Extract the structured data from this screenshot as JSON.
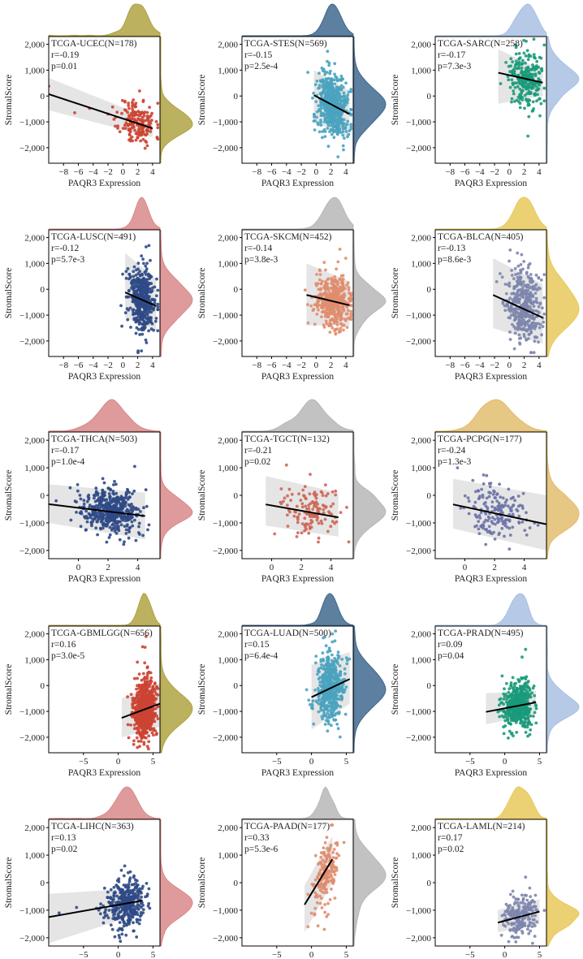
{
  "figure": {
    "y_label": "StromalScore",
    "x_label": "PAQR3 Expression"
  },
  "chart_data": [
    {
      "type": "scatter",
      "title": "TCGA-UCEC(N=178)",
      "r_text": "r=-0.19",
      "p_text": "p=0.01",
      "color": "#cc4433",
      "density_color": "#b0a343",
      "xlim": [
        -10,
        5
      ],
      "xticks": [
        -8,
        -6,
        -4,
        -2,
        0,
        2,
        4
      ],
      "ylim": [
        -2600,
        2300
      ],
      "yticks": [
        -2000,
        -1000,
        0,
        1000,
        2000
      ],
      "fit": {
        "x": [
          -10,
          4
        ],
        "y": [
          70,
          -1250
        ]
      },
      "band": {
        "x": [
          -10,
          4
        ],
        "lower_start": -550,
        "upper_start": 700,
        "lower_end": -1600,
        "upper_end": -900
      },
      "points": {
        "n": 178,
        "x_mean": 2.0,
        "x_sd": 1.2,
        "y_mean": -950,
        "y_sd": 450,
        "seed": 11,
        "outliers": [
          [
            -10,
            380
          ],
          [
            -6.5,
            -650
          ],
          [
            -4.5,
            -480
          ],
          [
            -2,
            -700
          ],
          [
            -1.2,
            -900
          ]
        ]
      }
    },
    {
      "type": "scatter",
      "title": "TCGA-STES(N=569)",
      "r_text": "r=-0.15",
      "p_text": "p=2.5e-4",
      "color": "#4aa3bf",
      "density_color": "#41698f",
      "xlim": [
        -10,
        5
      ],
      "xticks": [
        -8,
        -6,
        -4,
        -2,
        0,
        2,
        4
      ],
      "ylim": [
        -2600,
        2300
      ],
      "yticks": [
        -2000,
        -1000,
        0,
        1000,
        2000
      ],
      "fit": {
        "x": [
          -0.3,
          4.5
        ],
        "y": [
          30,
          -700
        ]
      },
      "band": {
        "x": [
          -0.3,
          4.5
        ],
        "lower_start": -1000,
        "upper_start": 1000,
        "lower_end": -1600,
        "upper_end": 200
      },
      "points": {
        "n": 569,
        "x_mean": 2.3,
        "x_sd": 1.0,
        "y_mean": -400,
        "y_sd": 620,
        "seed": 12,
        "outliers": []
      }
    },
    {
      "type": "scatter",
      "title": "TCGA-SARC(N=258)",
      "r_text": "r=-0.17",
      "p_text": "p=7.3e-3",
      "color": "#1a9a7a",
      "density_color": "#a9c1e4",
      "xlim": [
        -10,
        5
      ],
      "xticks": [
        -8,
        -6,
        -4,
        -2,
        0,
        2,
        4
      ],
      "ylim": [
        -2600,
        2300
      ],
      "yticks": [
        -2000,
        -1000,
        0,
        1000,
        2000
      ],
      "fit": {
        "x": [
          -1.5,
          4.5
        ],
        "y": [
          900,
          520
        ]
      },
      "band": {
        "x": [
          -1.5,
          4.5
        ],
        "lower_start": -300,
        "upper_start": 1800,
        "lower_end": 0,
        "upper_end": 1000
      },
      "points": {
        "n": 258,
        "x_mean": 2.3,
        "x_sd": 1.2,
        "y_mean": 550,
        "y_sd": 550,
        "seed": 13,
        "outliers": [
          [
            3.3,
            2200
          ],
          [
            2.5,
            -1550
          ]
        ]
      }
    },
    {
      "type": "scatter",
      "title": "TCGA-LUSC(N=491)",
      "r_text": "r=-0.12",
      "p_text": "p=5.7e-3",
      "color": "#2f4a86",
      "density_color": "#d98989",
      "xlim": [
        -10,
        5
      ],
      "xticks": [
        -8,
        -6,
        -4,
        -2,
        0,
        2,
        4
      ],
      "ylim": [
        -2600,
        2300
      ],
      "yticks": [
        -2000,
        -1000,
        0,
        1000,
        2000
      ],
      "fit": {
        "x": [
          0.3,
          4.5
        ],
        "y": [
          -120,
          -650
        ]
      },
      "band": {
        "x": [
          0.3,
          4.5
        ],
        "lower_start": -1100,
        "upper_start": 1400,
        "lower_end": -1600,
        "upper_end": 400
      },
      "points": {
        "n": 491,
        "x_mean": 2.6,
        "x_sd": 0.9,
        "y_mean": -350,
        "y_sd": 620,
        "seed": 14,
        "outliers": []
      }
    },
    {
      "type": "scatter",
      "title": "TCGA-SKCM(N=452)",
      "r_text": "r=-0.14",
      "p_text": "p=3.8e-3",
      "color": "#e08d6e",
      "density_color": "#b7b7b7",
      "xlim": [
        -10,
        5
      ],
      "xticks": [
        -8,
        -6,
        -4,
        -2,
        0,
        2,
        4
      ],
      "ylim": [
        -2600,
        2300
      ],
      "yticks": [
        -2000,
        -1000,
        0,
        1000,
        2000
      ],
      "fit": {
        "x": [
          -1.3,
          4.5
        ],
        "y": [
          -220,
          -620
        ]
      },
      "band": {
        "x": [
          -1.3,
          4.5
        ],
        "lower_start": -1400,
        "upper_start": 1000,
        "lower_end": -1400,
        "upper_end": 300
      },
      "points": {
        "n": 452,
        "x_mean": 2.3,
        "x_sd": 1.2,
        "y_mean": -380,
        "y_sd": 480,
        "seed": 15,
        "outliers": [
          [
            3.2,
            1550
          ],
          [
            4,
            1200
          ]
        ]
      }
    },
    {
      "type": "scatter",
      "title": "TCGA-BLCA(N=405)",
      "r_text": "r=-0.13",
      "p_text": "p=8.6e-3",
      "color": "#7d86ad",
      "density_color": "#e8c95a",
      "xlim": [
        -10,
        5
      ],
      "xticks": [
        -8,
        -6,
        -4,
        -2,
        0,
        2,
        4
      ],
      "ylim": [
        -2600,
        2300
      ],
      "yticks": [
        -2000,
        -1000,
        0,
        1000,
        2000
      ],
      "fit": {
        "x": [
          -2.2,
          4.5
        ],
        "y": [
          -220,
          -1100
        ]
      },
      "band": {
        "x": [
          -2.2,
          4.5
        ],
        "lower_start": -1500,
        "upper_start": 1200,
        "lower_end": -2100,
        "upper_end": 200
      },
      "points": {
        "n": 405,
        "x_mean": 2.0,
        "x_sd": 1.2,
        "y_mean": -500,
        "y_sd": 700,
        "seed": 16,
        "outliers": []
      }
    },
    {
      "type": "scatter",
      "title": "TCGA-THCA(N=503)",
      "r_text": "r=-0.17",
      "p_text": "p=1.0e-4",
      "color": "#2f4a86",
      "density_color": "#d98989",
      "xlim": [
        -2,
        5.5
      ],
      "xticks": [
        0,
        2,
        4
      ],
      "ylim": [
        -2300,
        2300
      ],
      "yticks": [
        -2000,
        -1000,
        0,
        1000,
        2000
      ],
      "fit": {
        "x": [
          -2,
          4.5
        ],
        "y": [
          -320,
          -750
        ]
      },
      "band": {
        "x": [
          -2,
          4.5
        ],
        "lower_start": -1000,
        "upper_start": 400,
        "lower_end": -1600,
        "upper_end": 100
      },
      "points": {
        "n": 503,
        "x_mean": 2.2,
        "x_sd": 0.9,
        "y_mean": -480,
        "y_sd": 400,
        "seed": 17,
        "outliers": [
          [
            -1.5,
            -200
          ],
          [
            -0.5,
            -900
          ],
          [
            3.8,
            1050
          ]
        ]
      }
    },
    {
      "type": "scatter",
      "title": "TCGA-TGCT(N=132)",
      "r_text": "r=-0.21",
      "p_text": "p=0.02",
      "color": "#cd6655",
      "density_color": "#b7b7b7",
      "xlim": [
        -2,
        5.5
      ],
      "xticks": [
        0,
        2,
        4
      ],
      "ylim": [
        -2300,
        2300
      ],
      "yticks": [
        -2000,
        -1000,
        0,
        1000,
        2000
      ],
      "fit": {
        "x": [
          -0.4,
          4.5
        ],
        "y": [
          -330,
          -800
        ]
      },
      "band": {
        "x": [
          -0.4,
          4.5
        ],
        "lower_start": -1100,
        "upper_start": 700,
        "lower_end": -1500,
        "upper_end": 100
      },
      "points": {
        "n": 132,
        "x_mean": 2.7,
        "x_sd": 0.9,
        "y_mean": -500,
        "y_sd": 480,
        "seed": 18,
        "outliers": [
          [
            1,
            1100
          ],
          [
            0.2,
            -1400
          ]
        ]
      }
    },
    {
      "type": "scatter",
      "title": "TCGA-PCPG(N=177)",
      "r_text": "r=-0.24",
      "p_text": "p=1.3e-3",
      "color": "#6b73a8",
      "density_color": "#e2bd6e",
      "xlim": [
        -2,
        5.5
      ],
      "xticks": [
        0,
        2,
        4
      ],
      "ylim": [
        -2300,
        2300
      ],
      "yticks": [
        -2000,
        -1000,
        0,
        1000,
        2000
      ],
      "fit": {
        "x": [
          -0.8,
          5.5
        ],
        "y": [
          -330,
          -1050
        ]
      },
      "band": {
        "x": [
          -0.8,
          5.5
        ],
        "lower_start": -1200,
        "upper_start": 600,
        "lower_end": -2000,
        "upper_end": 0
      },
      "points": {
        "n": 177,
        "x_mean": 2.2,
        "x_sd": 1.0,
        "y_mean": -600,
        "y_sd": 500,
        "seed": 19,
        "outliers": [
          [
            -0.5,
            1000
          ],
          [
            3,
            -1950
          ]
        ]
      }
    },
    {
      "type": "scatter",
      "title": "TCGA-GBMLGG(N=656)",
      "r_text": "r=0.16",
      "p_text": "p=3.0e-5",
      "color": "#cc4433",
      "density_color": "#b0a343",
      "xlim": [
        -10,
        6
      ],
      "xticks": [
        -5,
        0,
        5
      ],
      "ylim": [
        -2600,
        2300
      ],
      "yticks": [
        -2000,
        -1000,
        0,
        1000,
        2000
      ],
      "fit": {
        "x": [
          0.5,
          6
        ],
        "y": [
          -1250,
          -700
        ]
      },
      "band": {
        "x": [
          0.5,
          6
        ],
        "lower_start": -2000,
        "upper_start": -500,
        "lower_end": -1600,
        "upper_end": 100
      },
      "points": {
        "n": 656,
        "x_mean": 3.8,
        "x_sd": 0.8,
        "y_mean": -850,
        "y_sd": 600,
        "seed": 20,
        "outliers": [
          [
            4,
            1900
          ],
          [
            3.5,
            1500
          ]
        ]
      }
    },
    {
      "type": "scatter",
      "title": "TCGA-LUAD(N=500)",
      "r_text": "r=0.15",
      "p_text": "p=6.4e-4",
      "color": "#4aa3bf",
      "density_color": "#41698f",
      "xlim": [
        -10,
        6
      ],
      "xticks": [
        -5,
        0,
        5
      ],
      "ylim": [
        -2600,
        2300
      ],
      "yticks": [
        -2000,
        -1000,
        0,
        1000,
        2000
      ],
      "fit": {
        "x": [
          0,
          5.5
        ],
        "y": [
          -450,
          250
        ]
      },
      "band": {
        "x": [
          0,
          5.5
        ],
        "lower_start": -1700,
        "upper_start": 800,
        "lower_end": -700,
        "upper_end": 1300
      },
      "points": {
        "n": 500,
        "x_mean": 2.7,
        "x_sd": 1.0,
        "y_mean": -80,
        "y_sd": 650,
        "seed": 21,
        "outliers": [
          [
            3,
            2000
          ]
        ]
      }
    },
    {
      "type": "scatter",
      "title": "TCGA-PRAD(N=495)",
      "r_text": "r=0.09",
      "p_text": "p=0.04",
      "color": "#1a9a7a",
      "density_color": "#a9c1e4",
      "xlim": [
        -10,
        6
      ],
      "xticks": [
        -5,
        0,
        5
      ],
      "ylim": [
        -2600,
        2300
      ],
      "yticks": [
        -2000,
        -1000,
        0,
        1000,
        2000
      ],
      "fit": {
        "x": [
          -2.7,
          4.5
        ],
        "y": [
          -1020,
          -650
        ]
      },
      "band": {
        "x": [
          -2.7,
          4.5
        ],
        "lower_start": -1500,
        "upper_start": -300,
        "lower_end": -1100,
        "upper_end": -200
      },
      "points": {
        "n": 495,
        "x_mean": 2.0,
        "x_sd": 1.0,
        "y_mean": -780,
        "y_sd": 430,
        "seed": 22,
        "outliers": [
          [
            3,
            1400
          ],
          [
            2.5,
            1100
          ]
        ]
      }
    },
    {
      "type": "scatter",
      "title": "TCGA-LIHC(N=363)",
      "r_text": "r=0.13",
      "p_text": "p=0.02",
      "color": "#2f4a86",
      "density_color": "#d98989",
      "xlim": [
        -10,
        6
      ],
      "xticks": [
        -5,
        0,
        5
      ],
      "ylim": [
        -2300,
        2300
      ],
      "yticks": [
        -2000,
        -1000,
        0,
        1000,
        2000
      ],
      "fit": {
        "x": [
          -10,
          3.5
        ],
        "y": [
          -1250,
          -650
        ]
      },
      "band": {
        "x": [
          -10,
          3.5
        ],
        "lower_start": -2200,
        "upper_start": -400,
        "lower_end": -1100,
        "upper_end": -200
      },
      "points": {
        "n": 363,
        "x_mean": 1.0,
        "x_sd": 1.4,
        "y_mean": -800,
        "y_sd": 450,
        "seed": 23,
        "outliers": [
          [
            -8.5,
            -1100
          ],
          [
            -6,
            -900
          ]
        ]
      }
    },
    {
      "type": "scatter",
      "title": "TCGA-PAAD(N=177)",
      "r_text": "r=0.33",
      "p_text": "p=5.3e-6",
      "color": "#e08d6e",
      "density_color": "#b7b7b7",
      "xlim": [
        -10,
        6
      ],
      "xticks": [
        -5,
        0,
        5
      ],
      "ylim": [
        -2300,
        2300
      ],
      "yticks": [
        -2000,
        -1000,
        0,
        1000,
        2000
      ],
      "fit": {
        "x": [
          -1,
          3
        ],
        "y": [
          -800,
          850
        ]
      },
      "band": {
        "x": [
          -1,
          3
        ],
        "lower_start": -1800,
        "upper_start": -100,
        "lower_end": 0,
        "upper_end": 1700
      },
      "points": {
        "n": 177,
        "x_mean": 1.9,
        "x_sd": 0.9,
        "y_mean": 0,
        "y_sd": 650,
        "seed": 24,
        "outliers": [
          [
            -0.5,
            -1600
          ]
        ]
      }
    },
    {
      "type": "scatter",
      "title": "TCGA-LAML(N=214)",
      "r_text": "r=0.17",
      "p_text": "p=0.02",
      "color": "#7d86ad",
      "density_color": "#e8c95a",
      "xlim": [
        -10,
        6
      ],
      "xticks": [
        -5,
        0,
        5
      ],
      "ylim": [
        -2300,
        2300
      ],
      "yticks": [
        -2000,
        -1000,
        0,
        1000,
        2000
      ],
      "fit": {
        "x": [
          -1,
          5
        ],
        "y": [
          -1450,
          -1050
        ]
      },
      "band": {
        "x": [
          -1,
          5
        ],
        "lower_start": -1800,
        "upper_start": -1000,
        "lower_end": -1500,
        "upper_end": -600
      },
      "points": {
        "n": 214,
        "x_mean": 2.2,
        "x_sd": 1.2,
        "y_mean": -1200,
        "y_sd": 350,
        "seed": 25,
        "outliers": [
          [
            4,
            -2200
          ],
          [
            3,
            200
          ]
        ]
      }
    }
  ]
}
